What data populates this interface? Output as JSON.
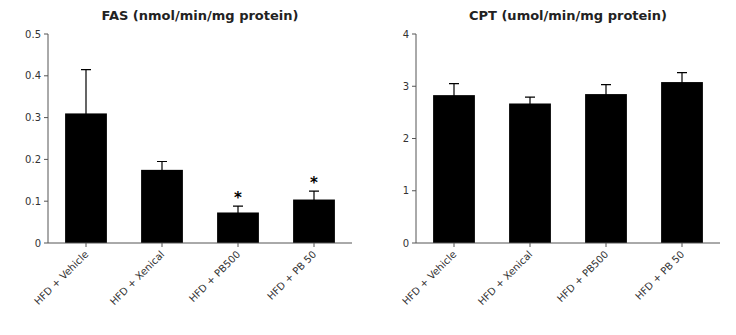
{
  "chart_data": [
    {
      "type": "bar",
      "title": "FAS (nmol/min/mg protein)",
      "categories": [
        "HFD + Vehicle",
        "HFD + Xenical",
        "HFD + PB500",
        "HFD + PB 50"
      ],
      "values": [
        0.31,
        0.175,
        0.073,
        0.104
      ],
      "errors": [
        0.105,
        0.02,
        0.015,
        0.02
      ],
      "color": "#000000",
      "ylim": [
        0,
        0.5
      ],
      "yticks": [
        0,
        0.1,
        0.2,
        0.3,
        0.4,
        0.5
      ],
      "grid": false,
      "annotations": [
        {
          "category": "HFD + PB500",
          "text": "*"
        },
        {
          "category": "HFD + PB 50",
          "text": "*"
        }
      ]
    },
    {
      "type": "bar",
      "title": "CPT (umol/min/mg protein)",
      "categories": [
        "HFD + Vehicle",
        "HFD + Xenical",
        "HFD + PB500",
        "HFD + PB 50"
      ],
      "values": [
        2.83,
        2.67,
        2.85,
        3.08
      ],
      "errors": [
        0.22,
        0.12,
        0.18,
        0.18
      ],
      "color": "#000000",
      "ylim": [
        0,
        4
      ],
      "yticks": [
        0,
        1,
        2,
        3,
        4
      ],
      "grid": false
    }
  ]
}
